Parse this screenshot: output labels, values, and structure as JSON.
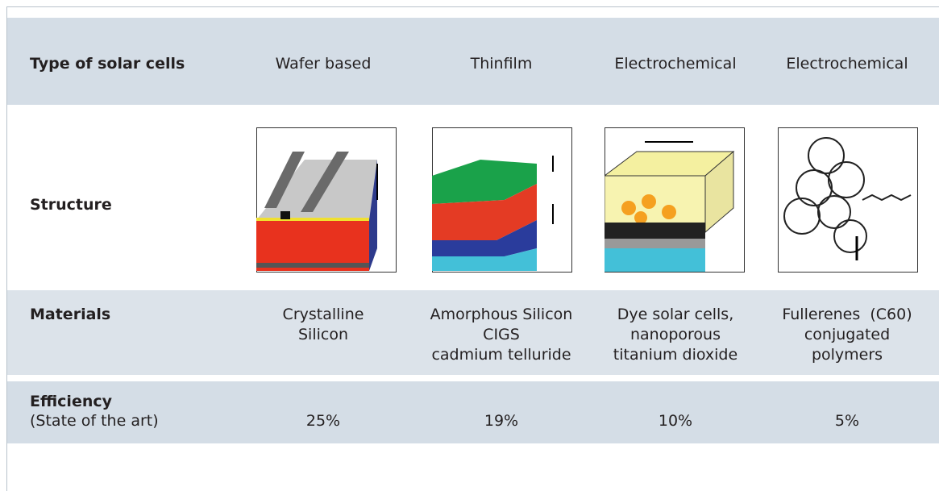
{
  "table": {
    "header": {
      "label": "Type of solar cells",
      "columns": [
        "Wafer based",
        "Thinfilm",
        "Electrochemical",
        "Electrochemical"
      ]
    },
    "structure": {
      "label": "Structure"
    },
    "materials": {
      "label": "Materials",
      "cells": [
        [
          "Crystalline",
          "Silicon"
        ],
        [
          "Amorphous Silicon",
          "CIGS",
          "cadmium telluride"
        ],
        [
          "Dye solar cells,",
          "nanoporous",
          "titanium dioxide"
        ],
        [
          "Fullerenes  (C60)",
          "conjugated",
          "polymers"
        ]
      ]
    },
    "efficiency": {
      "label": "Efficiency",
      "sublabel": "(State of the art)",
      "cells": [
        "25%",
        "19%",
        "10%",
        "5%"
      ]
    }
  }
}
